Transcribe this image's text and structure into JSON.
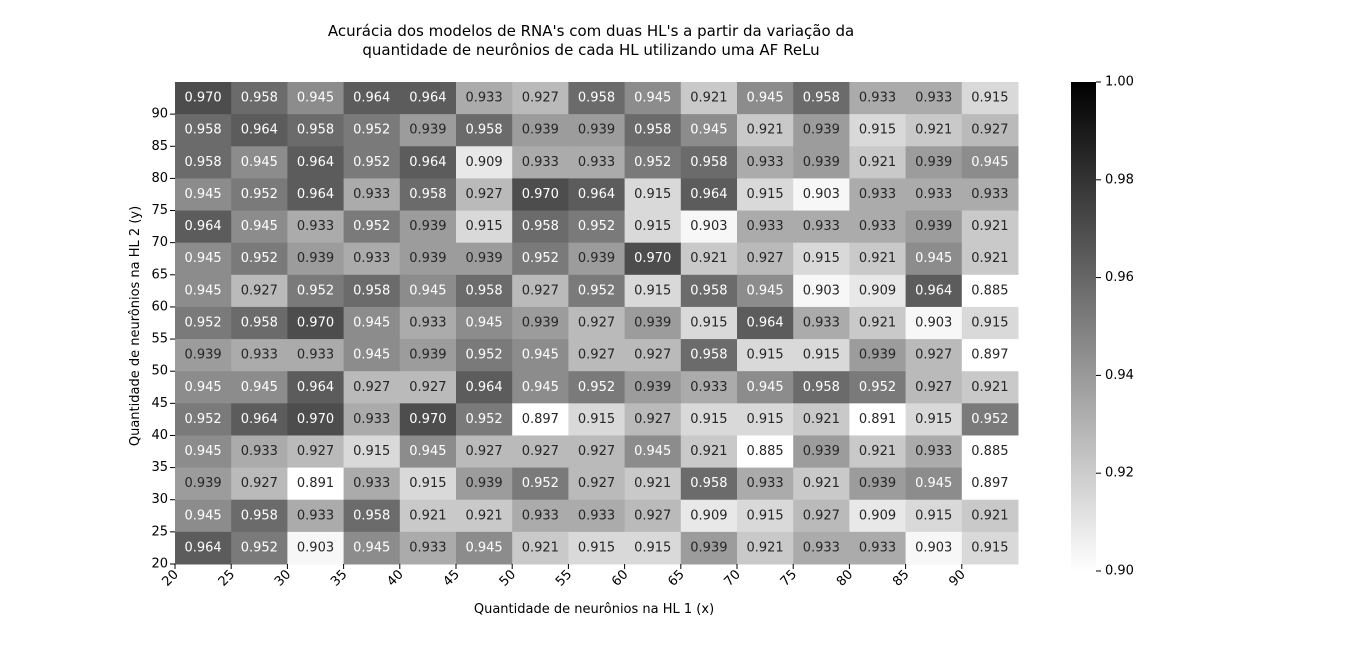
{
  "chart_data": {
    "type": "heatmap",
    "title_line1": "Acurácia dos modelos de RNA's com duas HL's a partir da variação da",
    "title_line2": "quantidade de neurônios de cada HL utilizando uma AF ReLu",
    "xlabel": "Quantidade de neurônios na HL 1 (x)",
    "ylabel": "Quantidade de neurônios na HL 2 (y)",
    "x_ticks": [
      "20",
      "25",
      "30",
      "35",
      "40",
      "45",
      "50",
      "55",
      "60",
      "65",
      "70",
      "75",
      "80",
      "85",
      "90"
    ],
    "y_ticks": [
      "20",
      "25",
      "30",
      "35",
      "40",
      "45",
      "50",
      "55",
      "60",
      "65",
      "70",
      "75",
      "80",
      "85",
      "90"
    ],
    "colorbar": {
      "min": 0.9,
      "max": 1.0,
      "ticks": [
        "0.90",
        "0.92",
        "0.94",
        "0.96",
        "0.98",
        "1.00"
      ],
      "tick_values": [
        0.9,
        0.92,
        0.94,
        0.96,
        0.98,
        1.0
      ],
      "colormap": "white-to-black"
    },
    "rows_top_to_bottom": [
      [
        "0.970",
        "0.958",
        "0.945",
        "0.964",
        "0.964",
        "0.933",
        "0.927",
        "0.958",
        "0.945",
        "0.921",
        "0.945",
        "0.958",
        "0.933",
        "0.933",
        "0.915"
      ],
      [
        "0.958",
        "0.964",
        "0.958",
        "0.952",
        "0.939",
        "0.958",
        "0.939",
        "0.939",
        "0.958",
        "0.945",
        "0.921",
        "0.939",
        "0.915",
        "0.921",
        "0.927"
      ],
      [
        "0.958",
        "0.945",
        "0.964",
        "0.952",
        "0.964",
        "0.909",
        "0.933",
        "0.933",
        "0.952",
        "0.958",
        "0.933",
        "0.939",
        "0.921",
        "0.939",
        "0.945"
      ],
      [
        "0.945",
        "0.952",
        "0.964",
        "0.933",
        "0.958",
        "0.927",
        "0.970",
        "0.964",
        "0.915",
        "0.964",
        "0.915",
        "0.903",
        "0.933",
        "0.933",
        "0.933"
      ],
      [
        "0.964",
        "0.945",
        "0.933",
        "0.952",
        "0.939",
        "0.915",
        "0.958",
        "0.952",
        "0.915",
        "0.903",
        "0.933",
        "0.933",
        "0.933",
        "0.939",
        "0.921"
      ],
      [
        "0.945",
        "0.952",
        "0.939",
        "0.933",
        "0.939",
        "0.939",
        "0.952",
        "0.939",
        "0.970",
        "0.921",
        "0.927",
        "0.915",
        "0.921",
        "0.945",
        "0.921"
      ],
      [
        "0.945",
        "0.927",
        "0.952",
        "0.958",
        "0.945",
        "0.958",
        "0.927",
        "0.952",
        "0.915",
        "0.958",
        "0.945",
        "0.903",
        "0.909",
        "0.964",
        "0.885"
      ],
      [
        "0.952",
        "0.958",
        "0.970",
        "0.945",
        "0.933",
        "0.945",
        "0.939",
        "0.927",
        "0.939",
        "0.915",
        "0.964",
        "0.933",
        "0.921",
        "0.903",
        "0.915"
      ],
      [
        "0.939",
        "0.933",
        "0.933",
        "0.945",
        "0.939",
        "0.952",
        "0.945",
        "0.927",
        "0.927",
        "0.958",
        "0.915",
        "0.915",
        "0.939",
        "0.927",
        "0.897"
      ],
      [
        "0.945",
        "0.945",
        "0.964",
        "0.927",
        "0.927",
        "0.964",
        "0.945",
        "0.952",
        "0.939",
        "0.933",
        "0.945",
        "0.958",
        "0.952",
        "0.927",
        "0.921"
      ],
      [
        "0.952",
        "0.964",
        "0.970",
        "0.933",
        "0.970",
        "0.952",
        "0.897",
        "0.915",
        "0.927",
        "0.915",
        "0.915",
        "0.921",
        "0.891",
        "0.915",
        "0.952"
      ],
      [
        "0.945",
        "0.933",
        "0.927",
        "0.915",
        "0.945",
        "0.927",
        "0.927",
        "0.927",
        "0.945",
        "0.921",
        "0.885",
        "0.939",
        "0.921",
        "0.933",
        "0.885"
      ],
      [
        "0.939",
        "0.927",
        "0.891",
        "0.933",
        "0.915",
        "0.939",
        "0.952",
        "0.927",
        "0.921",
        "0.958",
        "0.933",
        "0.921",
        "0.939",
        "0.945",
        "0.897"
      ],
      [
        "0.945",
        "0.958",
        "0.933",
        "0.958",
        "0.921",
        "0.921",
        "0.933",
        "0.933",
        "0.927",
        "0.909",
        "0.915",
        "0.927",
        "0.909",
        "0.915",
        "0.921"
      ],
      [
        "0.964",
        "0.952",
        "0.903",
        "0.945",
        "0.933",
        "0.945",
        "0.921",
        "0.915",
        "0.915",
        "0.939",
        "0.921",
        "0.933",
        "0.933",
        "0.903",
        "0.915"
      ]
    ]
  }
}
